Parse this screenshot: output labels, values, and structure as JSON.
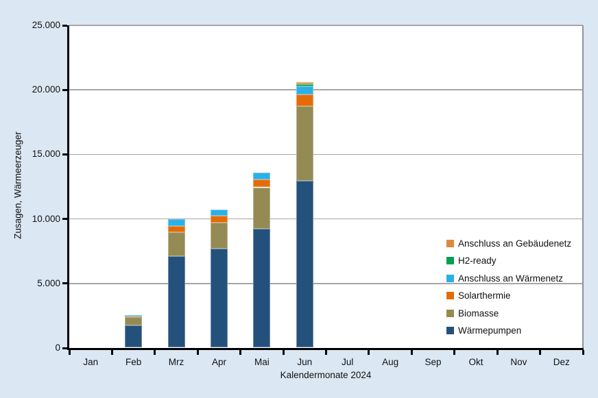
{
  "colors": {
    "page_bg": "#DBE7F3",
    "plot_bg": "#FFFFFF",
    "gridline": "#A6A6A6",
    "plot_border": "#8E959C",
    "axis": "#000000",
    "text": "#111111"
  },
  "chart_data": {
    "type": "bar",
    "stacked": true,
    "title": "",
    "xlabel": "Kalendermonate 2024",
    "ylabel": "Zusagen, Wärmeerzeuger",
    "ylim": [
      0,
      25000
    ],
    "yticks": [
      0,
      5000,
      10000,
      15000,
      20000,
      25000
    ],
    "ytick_labels": [
      "0",
      "5.000",
      "10.000",
      "15.000",
      "20.000",
      "25.000"
    ],
    "grid": true,
    "categories": [
      "Jan",
      "Feb",
      "Mrz",
      "Apr",
      "Mai",
      "Jun",
      "Jul",
      "Aug",
      "Sep",
      "Okt",
      "Nov",
      "Dez"
    ],
    "series": [
      {
        "name": "Wärmepumpen",
        "color": "#24517C",
        "values": [
          0,
          1725,
          7080,
          7660,
          9230,
          12900,
          0,
          0,
          0,
          0,
          0,
          0
        ]
      },
      {
        "name": "Biomasse",
        "color": "#948B54",
        "values": [
          0,
          650,
          1855,
          2015,
          3190,
          5790,
          0,
          0,
          0,
          0,
          0,
          0
        ]
      },
      {
        "name": "Solarthermie",
        "color": "#E36C09",
        "values": [
          0,
          45,
          480,
          530,
          615,
          940,
          0,
          0,
          0,
          0,
          0,
          0
        ]
      },
      {
        "name": "Anschluss an Wärmenetz",
        "color": "#2BB0E8",
        "values": [
          0,
          120,
          530,
          480,
          530,
          620,
          0,
          0,
          0,
          0,
          0,
          0
        ]
      },
      {
        "name": "H2-ready",
        "color": "#00A14E",
        "values": [
          0,
          0,
          0,
          0,
          0,
          175,
          0,
          0,
          0,
          0,
          0,
          0
        ]
      },
      {
        "name": "Anschluss an Gebäudenetz",
        "color": "#DC8A3D",
        "values": [
          0,
          0,
          0,
          0,
          0,
          145,
          0,
          0,
          0,
          0,
          0,
          0
        ]
      }
    ],
    "legend": {
      "position": "inside-right",
      "entries_top_to_bottom": [
        "Anschluss an Gebäudenetz",
        "H2-ready",
        "Anschluss an Wärmenetz",
        "Solarthermie",
        "Biomasse",
        "Wärmepumpen"
      ]
    }
  }
}
